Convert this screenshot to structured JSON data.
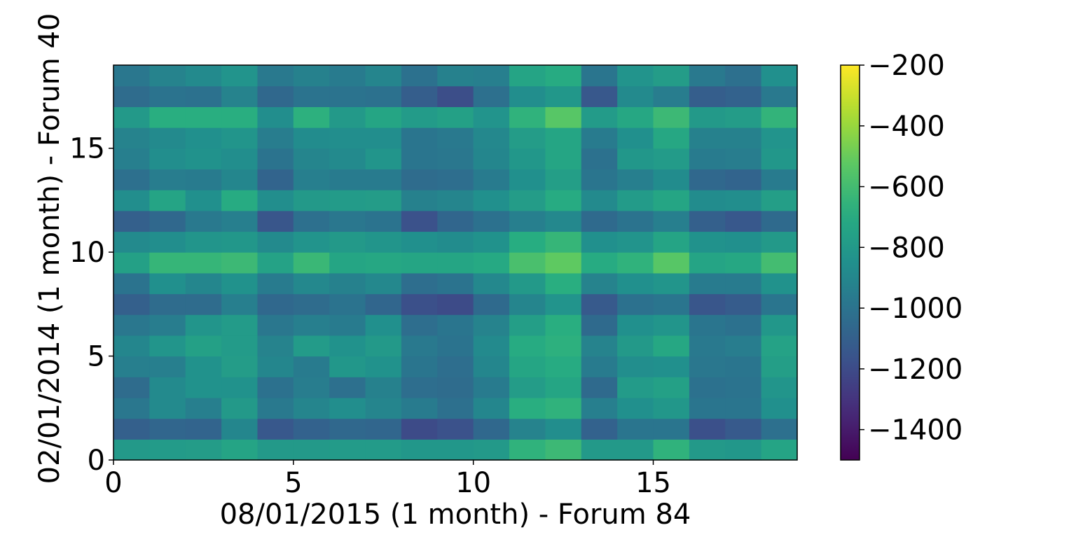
{
  "chart_data": {
    "type": "heatmap",
    "title": "",
    "xlabel": "08/01/2015 (1 month) - Forum 84",
    "ylabel": "02/01/2014 (1 month) - Forum 40",
    "xlim": [
      0,
      19
    ],
    "ylim": [
      0,
      19
    ],
    "xticks": [
      0,
      5,
      10,
      15
    ],
    "yticks": [
      0,
      5,
      10,
      15
    ],
    "colormap": "viridis",
    "colorbar": {
      "vmin": -1500,
      "vmax": -200,
      "ticks": [
        -200,
        -400,
        -600,
        -800,
        -1000,
        -1200,
        -1400
      ],
      "tick_labels": [
        "−200",
        "−400",
        "−600",
        "−800",
        "−1000",
        "−1200",
        "−1400"
      ]
    },
    "grid": false,
    "rows_bottom_to_top": [
      [
        -800,
        -790,
        -780,
        -740,
        -800,
        -800,
        -790,
        -790,
        -810,
        -810,
        -800,
        -660,
        -620,
        -800,
        -800,
        -660,
        -800,
        -810,
        -740
      ],
      [
        -1100,
        -1070,
        -1080,
        -900,
        -1140,
        -1090,
        -1060,
        -1070,
        -1200,
        -1170,
        -1060,
        -920,
        -860,
        -1090,
        -990,
        -990,
        -1180,
        -1130,
        -1020
      ],
      [
        -980,
        -880,
        -940,
        -800,
        -970,
        -910,
        -860,
        -910,
        -960,
        -1020,
        -900,
        -680,
        -660,
        -940,
        -850,
        -810,
        -990,
        -990,
        -850
      ],
      [
        -1040,
        -880,
        -840,
        -840,
        -1010,
        -950,
        -1020,
        -930,
        -1030,
        -1040,
        -960,
        -780,
        -730,
        -1050,
        -790,
        -760,
        -1010,
        -1000,
        -820
      ],
      [
        -940,
        -940,
        -840,
        -780,
        -900,
        -960,
        -810,
        -840,
        -990,
        -1030,
        -900,
        -730,
        -700,
        -960,
        -860,
        -850,
        -980,
        -990,
        -770
      ],
      [
        -900,
        -820,
        -760,
        -790,
        -920,
        -790,
        -840,
        -800,
        -970,
        -1000,
        -880,
        -700,
        -670,
        -920,
        -800,
        -720,
        -970,
        -950,
        -750
      ],
      [
        -980,
        -950,
        -820,
        -790,
        -980,
        -940,
        -960,
        -850,
        -1030,
        -990,
        -920,
        -770,
        -680,
        -1050,
        -850,
        -820,
        -990,
        -1010,
        -810
      ],
      [
        -1100,
        -1040,
        -1040,
        -940,
        -1060,
        -1040,
        -1000,
        -1070,
        -1180,
        -1200,
        -1050,
        -910,
        -830,
        -1130,
        -1010,
        -990,
        -1150,
        -1120,
        -990
      ],
      [
        -1000,
        -850,
        -900,
        -840,
        -960,
        -890,
        -930,
        -890,
        -1030,
        -1000,
        -890,
        -800,
        -680,
        -920,
        -850,
        -820,
        -960,
        -960,
        -840
      ],
      [
        -760,
        -640,
        -640,
        -620,
        -750,
        -630,
        -730,
        -720,
        -730,
        -730,
        -710,
        -580,
        -520,
        -700,
        -660,
        -540,
        -740,
        -720,
        -600
      ],
      [
        -880,
        -860,
        -820,
        -810,
        -880,
        -830,
        -800,
        -820,
        -850,
        -870,
        -840,
        -690,
        -640,
        -850,
        -830,
        -740,
        -840,
        -850,
        -800
      ],
      [
        -1100,
        -1060,
        -970,
        -940,
        -1150,
        -1020,
        -980,
        -1000,
        -1170,
        -1070,
        -1010,
        -940,
        -890,
        -1050,
        -1000,
        -940,
        -1100,
        -1140,
        -1050
      ],
      [
        -860,
        -740,
        -850,
        -700,
        -860,
        -800,
        -790,
        -780,
        -930,
        -910,
        -850,
        -780,
        -700,
        -880,
        -790,
        -730,
        -870,
        -860,
        -770
      ],
      [
        -1020,
        -950,
        -960,
        -900,
        -1080,
        -940,
        -960,
        -960,
        -1040,
        -1030,
        -960,
        -850,
        -770,
        -990,
        -940,
        -870,
        -1060,
        -1080,
        -960
      ],
      [
        -940,
        -860,
        -840,
        -860,
        -1000,
        -910,
        -880,
        -820,
        -990,
        -980,
        -900,
        -810,
        -730,
        -1010,
        -810,
        -790,
        -960,
        -950,
        -810
      ],
      [
        -920,
        -880,
        -850,
        -820,
        -950,
        -870,
        -860,
        -860,
        -990,
        -970,
        -890,
        -780,
        -730,
        -960,
        -850,
        -720,
        -930,
        -930,
        -830
      ],
      [
        -800,
        -680,
        -680,
        -680,
        -860,
        -670,
        -800,
        -730,
        -790,
        -760,
        -830,
        -660,
        -540,
        -790,
        -720,
        -620,
        -800,
        -780,
        -650
      ],
      [
        -1040,
        -1000,
        -1010,
        -920,
        -1060,
        -1000,
        -1000,
        -1010,
        -1110,
        -1190,
        -1020,
        -860,
        -810,
        -1140,
        -880,
        -950,
        -1110,
        -1090,
        -970
      ],
      [
        -980,
        -920,
        -880,
        -830,
        -970,
        -930,
        -960,
        -910,
        -1010,
        -930,
        -940,
        -740,
        -700,
        -990,
        -830,
        -780,
        -970,
        -1020,
        -850
      ]
    ]
  }
}
